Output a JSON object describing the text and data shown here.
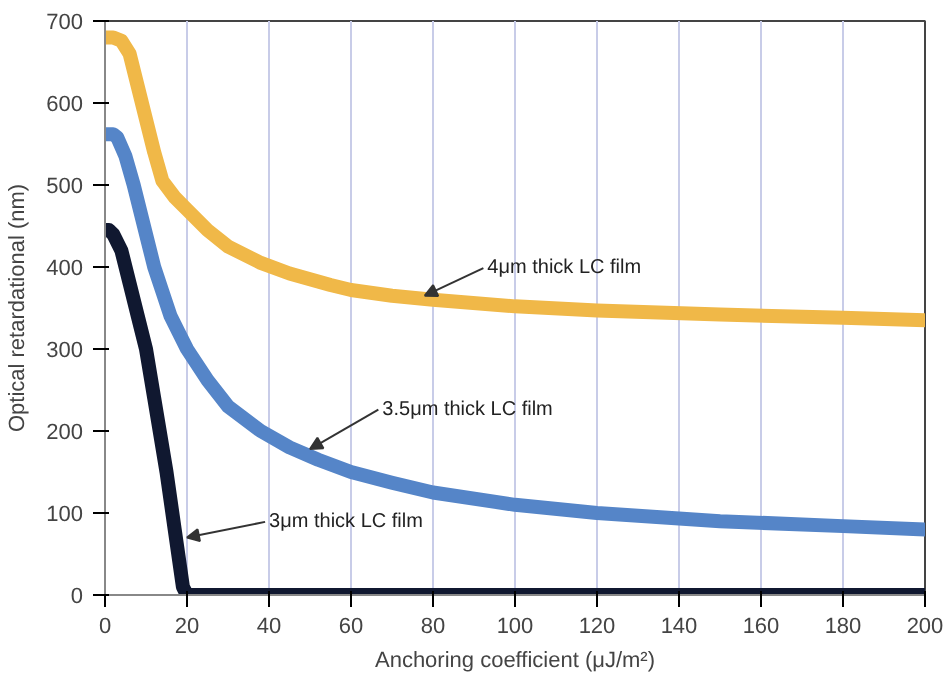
{
  "chart_data": {
    "type": "line",
    "xlabel": "Anchoring coefficient (μJ/m²)",
    "ylabel": "Optical retardational (nm)",
    "xlim": [
      0,
      200
    ],
    "ylim": [
      0,
      700
    ],
    "xticks": [
      0,
      20,
      40,
      60,
      80,
      100,
      120,
      140,
      160,
      180,
      200
    ],
    "yticks": [
      0,
      100,
      200,
      300,
      400,
      500,
      600,
      700
    ],
    "grid": "x",
    "line_style": "solid",
    "series": [
      {
        "color": "#f0b848",
        "x": [
          0,
          2,
          4,
          6,
          9,
          12,
          14,
          17,
          20,
          25,
          30,
          38,
          45,
          55,
          60,
          70,
          80,
          100,
          120,
          150,
          180,
          200
        ],
        "values": [
          680,
          680,
          676,
          660,
          600,
          540,
          505,
          485,
          470,
          445,
          425,
          405,
          392,
          378,
          372,
          365,
          360,
          352,
          347,
          342,
          338,
          335
        ]
      },
      {
        "color": "#5585c8",
        "x": [
          0,
          2,
          3,
          5,
          7,
          10,
          12,
          14,
          16,
          18,
          20,
          25,
          30,
          38,
          45,
          52,
          60,
          70,
          80,
          100,
          120,
          150,
          180,
          200
        ],
        "values": [
          562,
          562,
          558,
          535,
          500,
          440,
          400,
          370,
          340,
          320,
          300,
          262,
          230,
          200,
          180,
          165,
          150,
          137,
          125,
          110,
          100,
          90,
          84,
          80
        ]
      },
      {
        "color": "#101830",
        "x": [
          0,
          1,
          2,
          4,
          6,
          8,
          10,
          12,
          15,
          17,
          19,
          20,
          40,
          80,
          120,
          160,
          200
        ],
        "values": [
          445,
          445,
          440,
          420,
          380,
          340,
          300,
          240,
          150,
          80,
          10,
          0,
          0,
          0,
          0,
          0,
          0
        ]
      }
    ],
    "annotations": [
      {
        "text": "4μm thick LC film",
        "x": 78,
        "y": 365
      },
      {
        "text": "3.5μm thick LC film",
        "x": 50,
        "y": 178
      },
      {
        "text": "3μm thick LC film",
        "x": 20,
        "y": 70
      }
    ]
  }
}
